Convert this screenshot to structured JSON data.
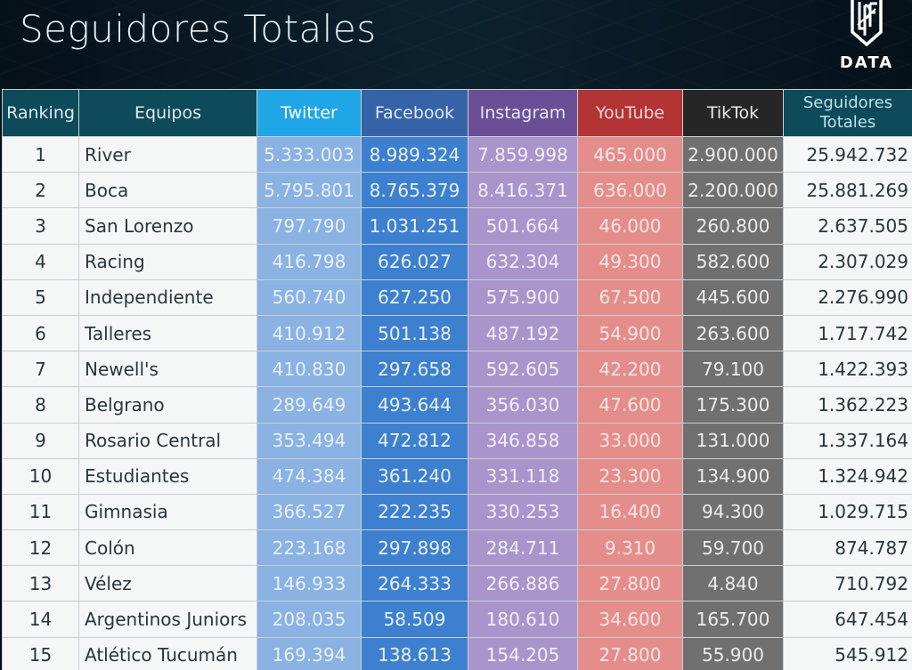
{
  "header": {
    "title": "Seguidores Totales",
    "logo_text": "DATA",
    "logo_icon": "lpf-shield-icon"
  },
  "colors": {
    "twitter": "#1ea6e6",
    "facebook": "#3663a8",
    "instagram": "#6b4f96",
    "youtube": "#b23434",
    "tiktok": "#262627",
    "header_teal": "#0d4a5a"
  },
  "table": {
    "columns": {
      "ranking": "Ranking",
      "team": "Equipos",
      "twitter": "Twitter",
      "facebook": "Facebook",
      "instagram": "Instagram",
      "youtube": "YouTube",
      "tiktok": "TikTok",
      "total_line1": "Seguidores",
      "total_line2": "Totales"
    },
    "rows": [
      {
        "rank": "1",
        "team": "River",
        "twitter": "5.333.003",
        "facebook": "8.989.324",
        "instagram": "7.859.998",
        "youtube": "465.000",
        "tiktok": "2.900.000",
        "total": "25.942.732"
      },
      {
        "rank": "2",
        "team": "Boca",
        "twitter": "5.795.801",
        "facebook": "8.765.379",
        "instagram": "8.416.371",
        "youtube": "636.000",
        "tiktok": "2.200.000",
        "total": "25.881.269"
      },
      {
        "rank": "3",
        "team": "San Lorenzo",
        "twitter": "797.790",
        "facebook": "1.031.251",
        "instagram": "501.664",
        "youtube": "46.000",
        "tiktok": "260.800",
        "total": "2.637.505"
      },
      {
        "rank": "4",
        "team": "Racing",
        "twitter": "416.798",
        "facebook": "626.027",
        "instagram": "632.304",
        "youtube": "49.300",
        "tiktok": "582.600",
        "total": "2.307.029"
      },
      {
        "rank": "5",
        "team": "Independiente",
        "twitter": "560.740",
        "facebook": "627.250",
        "instagram": "575.900",
        "youtube": "67.500",
        "tiktok": "445.600",
        "total": "2.276.990"
      },
      {
        "rank": "6",
        "team": "Talleres",
        "twitter": "410.912",
        "facebook": "501.138",
        "instagram": "487.192",
        "youtube": "54.900",
        "tiktok": "263.600",
        "total": "1.717.742"
      },
      {
        "rank": "7",
        "team": "Newell's",
        "twitter": "410.830",
        "facebook": "297.658",
        "instagram": "592.605",
        "youtube": "42.200",
        "tiktok": "79.100",
        "total": "1.422.393"
      },
      {
        "rank": "8",
        "team": "Belgrano",
        "twitter": "289.649",
        "facebook": "493.644",
        "instagram": "356.030",
        "youtube": "47.600",
        "tiktok": "175.300",
        "total": "1.362.223"
      },
      {
        "rank": "9",
        "team": "Rosario Central",
        "twitter": "353.494",
        "facebook": "472.812",
        "instagram": "346.858",
        "youtube": "33.000",
        "tiktok": "131.000",
        "total": "1.337.164"
      },
      {
        "rank": "10",
        "team": "Estudiantes",
        "twitter": "474.384",
        "facebook": "361.240",
        "instagram": "331.118",
        "youtube": "23.300",
        "tiktok": "134.900",
        "total": "1.324.942"
      },
      {
        "rank": "11",
        "team": "Gimnasia",
        "twitter": "366.527",
        "facebook": "222.235",
        "instagram": "330.253",
        "youtube": "16.400",
        "tiktok": "94.300",
        "total": "1.029.715"
      },
      {
        "rank": "12",
        "team": "Colón",
        "twitter": "223.168",
        "facebook": "297.898",
        "instagram": "284.711",
        "youtube": "9.310",
        "tiktok": "59.700",
        "total": "874.787"
      },
      {
        "rank": "13",
        "team": "Vélez",
        "twitter": "146.933",
        "facebook": "264.333",
        "instagram": "266.886",
        "youtube": "27.800",
        "tiktok": "4.840",
        "total": "710.792"
      },
      {
        "rank": "14",
        "team": "Argentinos Juniors",
        "twitter": "208.035",
        "facebook": "58.509",
        "instagram": "180.610",
        "youtube": "34.600",
        "tiktok": "165.700",
        "total": "647.454"
      },
      {
        "rank": "15",
        "team": "Atlético Tucumán",
        "twitter": "169.394",
        "facebook": "138.613",
        "instagram": "154.205",
        "youtube": "27.800",
        "tiktok": "55.900",
        "total": "545.912"
      }
    ]
  },
  "chart_data": {
    "type": "table",
    "title": "Seguidores Totales",
    "columns": [
      "Ranking",
      "Equipos",
      "Twitter",
      "Facebook",
      "Instagram",
      "YouTube",
      "TikTok",
      "Seguidores Totales"
    ],
    "categories": [
      "River",
      "Boca",
      "San Lorenzo",
      "Racing",
      "Independiente",
      "Talleres",
      "Newell's",
      "Belgrano",
      "Rosario Central",
      "Estudiantes",
      "Gimnasia",
      "Colón",
      "Vélez",
      "Argentinos Juniors",
      "Atlético Tucumán"
    ],
    "series": [
      {
        "name": "Twitter",
        "values": [
          5333003,
          5795801,
          797790,
          416798,
          560740,
          410912,
          410830,
          289649,
          353494,
          474384,
          366527,
          223168,
          146933,
          208035,
          169394
        ]
      },
      {
        "name": "Facebook",
        "values": [
          8989324,
          8765379,
          1031251,
          626027,
          627250,
          501138,
          297658,
          493644,
          472812,
          361240,
          222235,
          297898,
          264333,
          58509,
          138613
        ]
      },
      {
        "name": "Instagram",
        "values": [
          7859998,
          8416371,
          501664,
          632304,
          575900,
          487192,
          592605,
          356030,
          346858,
          331118,
          330253,
          284711,
          266886,
          180610,
          154205
        ]
      },
      {
        "name": "YouTube",
        "values": [
          465000,
          636000,
          46000,
          49300,
          67500,
          54900,
          42200,
          47600,
          33000,
          23300,
          16400,
          9310,
          27800,
          34600,
          27800
        ]
      },
      {
        "name": "TikTok",
        "values": [
          2900000,
          2200000,
          260800,
          582600,
          445600,
          263600,
          79100,
          175300,
          131000,
          134900,
          94300,
          59700,
          4840,
          165700,
          55900
        ]
      },
      {
        "name": "Seguidores Totales",
        "values": [
          25942732,
          25881269,
          2637505,
          2307029,
          2276990,
          1717742,
          1422393,
          1362223,
          1337164,
          1324942,
          1029715,
          874787,
          710792,
          647454,
          545912
        ]
      }
    ]
  }
}
